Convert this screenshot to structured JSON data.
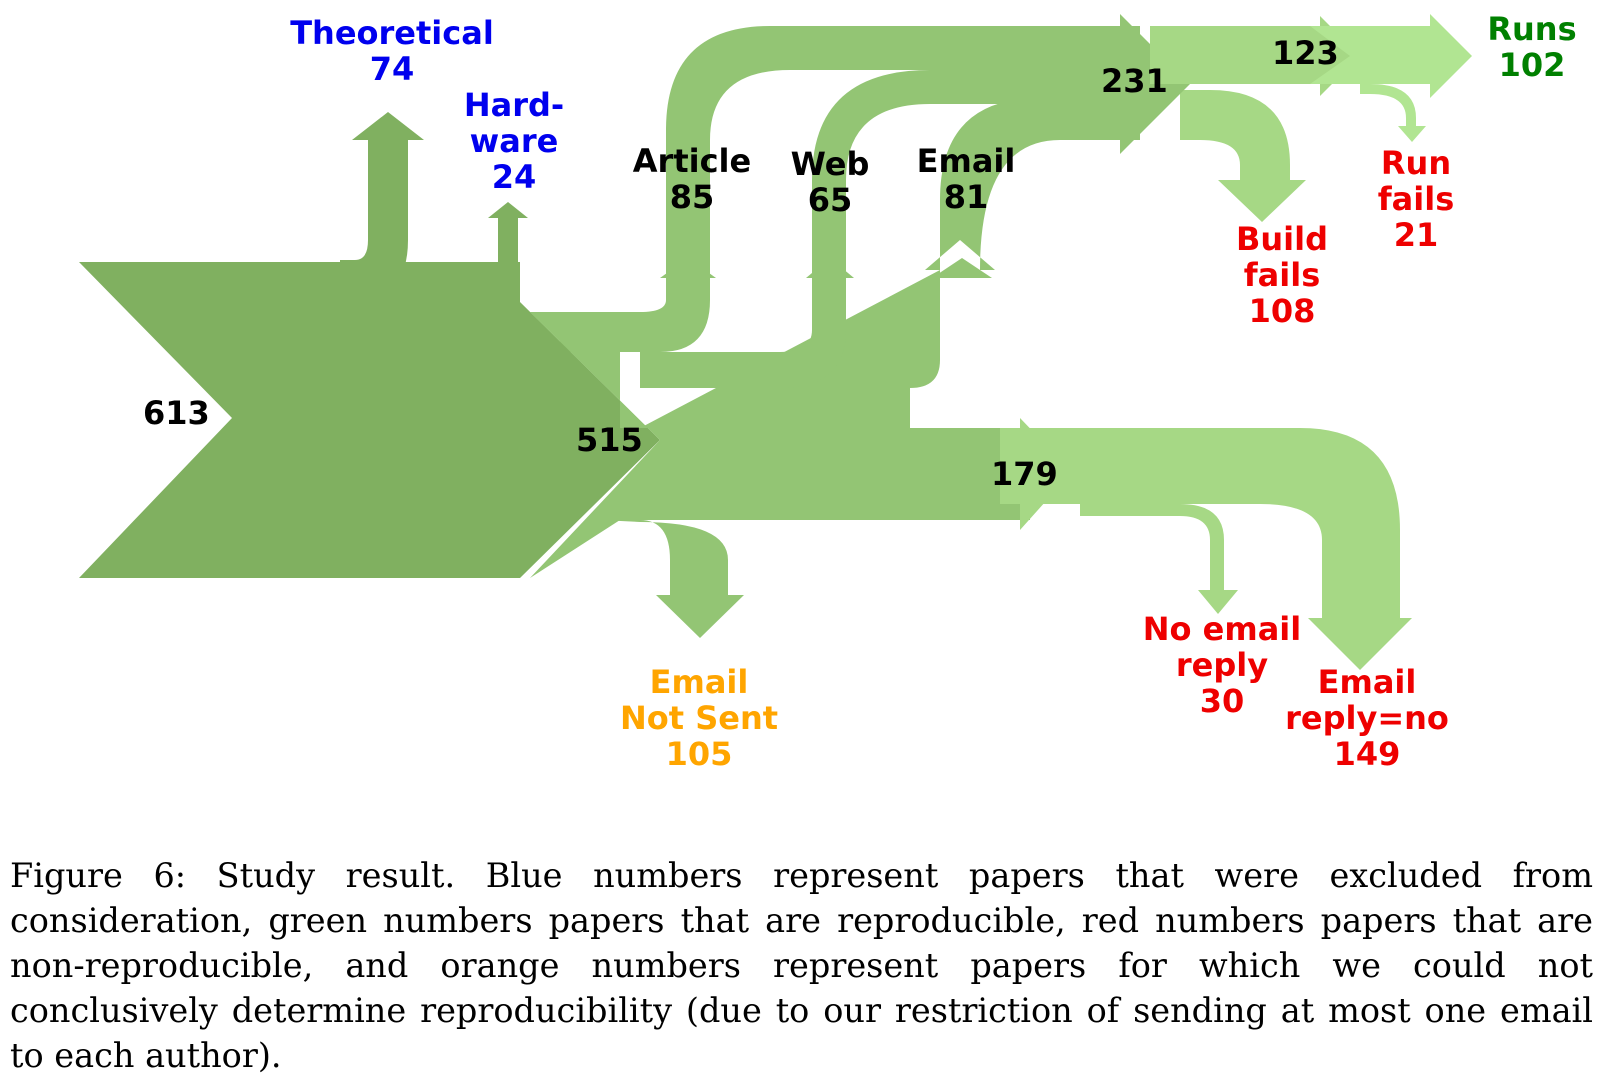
{
  "colors": {
    "black": "#000000",
    "blue": "#0000ee",
    "green": "#008000",
    "red": "#ee0000",
    "orange": "#ffa500",
    "band_dark": "#80b060",
    "band_mid": "#93c574",
    "band_light": "#a6d885",
    "band_lightest": "#b1e592"
  },
  "nodes": {
    "total": "613",
    "after_exclusion": "515",
    "code_found": "231",
    "builds": "123",
    "email_asked": "179"
  },
  "labels": {
    "theoretical": {
      "lines": [
        "Theoretical",
        "74"
      ],
      "color": "blue"
    },
    "hardware": {
      "lines": [
        "Hard-",
        "ware",
        "24"
      ],
      "color": "blue"
    },
    "article": {
      "lines": [
        "Article",
        "85"
      ],
      "color": "black"
    },
    "web": {
      "lines": [
        "Web",
        "65"
      ],
      "color": "black"
    },
    "email": {
      "lines": [
        "Email",
        "81"
      ],
      "color": "black"
    },
    "runs": {
      "lines": [
        "Runs",
        "102"
      ],
      "color": "green"
    },
    "run_fails": {
      "lines": [
        "Run",
        "fails",
        "21"
      ],
      "color": "red"
    },
    "build_fails": {
      "lines": [
        "Build",
        "fails",
        "108"
      ],
      "color": "red"
    },
    "no_email_reply": {
      "lines": [
        "No email",
        "reply",
        "30"
      ],
      "color": "red"
    },
    "email_reply_no": {
      "lines": [
        "Email",
        "reply=no",
        "149"
      ],
      "color": "red"
    },
    "email_not_sent": {
      "lines": [
        "Email",
        "Not Sent",
        "105"
      ],
      "color": "orange"
    }
  },
  "caption": "Figure 6: Study result. Blue numbers represent papers that were excluded from consideration, green numbers papers that are reproducible, red numbers papers that are non-reproducible, and orange numbers represent papers for which we could not conclusively determine reproducibility (due to our restriction of sending at most one email to each author)."
}
